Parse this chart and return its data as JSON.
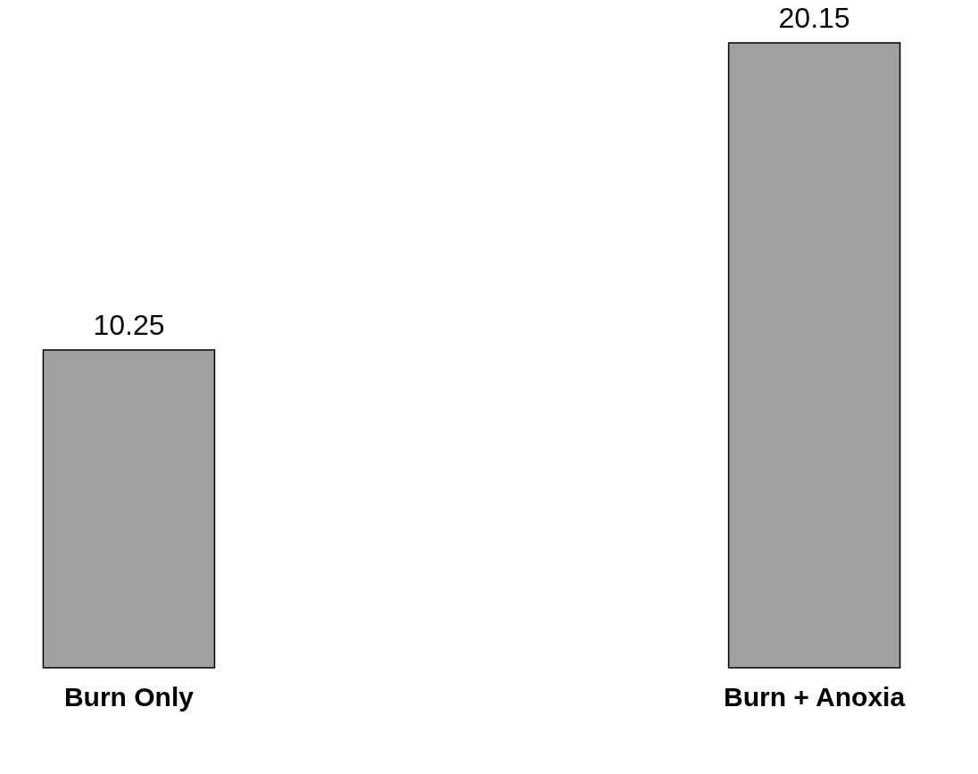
{
  "chart_data": {
    "type": "bar",
    "categories": [
      "Burn Only",
      "Burn + Anoxia"
    ],
    "values": [
      10.25,
      20.15
    ],
    "color": "#a0a0a0",
    "data_labels": true
  }
}
